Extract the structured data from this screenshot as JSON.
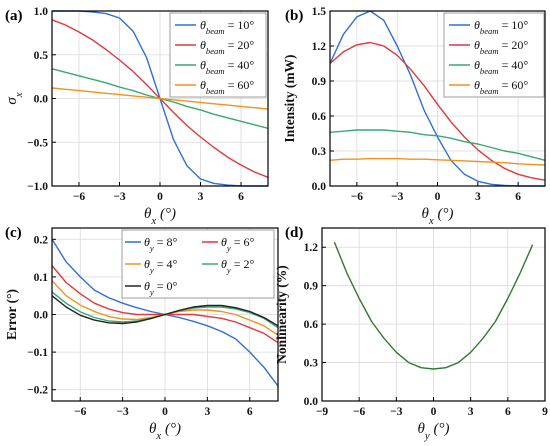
{
  "chart_data": [
    {
      "type": "line",
      "panel": "(a)",
      "ylabel": "σx",
      "xlabel": "θx (°)",
      "xlim": [
        -8,
        8
      ],
      "ylim": [
        -1.0,
        1.0
      ],
      "xticks": [
        -6,
        -3,
        0,
        3,
        6
      ],
      "yticks": [
        -1.0,
        -0.5,
        0.0,
        0.5,
        1.0
      ],
      "grid": true,
      "legend_position": "top-right",
      "x": [
        -8,
        -7,
        -6,
        -5,
        -4,
        -3,
        -2,
        -1,
        0,
        1,
        2,
        3,
        4,
        5,
        6,
        7,
        8
      ],
      "series": [
        {
          "name": "θbeam = 10°",
          "color": "#2f6fd6",
          "values": [
            1.0,
            1.0,
            1.0,
            0.99,
            0.97,
            0.92,
            0.77,
            0.47,
            0.0,
            -0.47,
            -0.77,
            -0.92,
            -0.97,
            -0.99,
            -1.0,
            -1.0,
            -1.0
          ]
        },
        {
          "name": "θbeam = 20°",
          "color": "#e0393e",
          "values": [
            0.9,
            0.84,
            0.76,
            0.67,
            0.56,
            0.44,
            0.31,
            0.16,
            0.0,
            -0.16,
            -0.31,
            -0.44,
            -0.56,
            -0.67,
            -0.76,
            -0.84,
            -0.9
          ]
        },
        {
          "name": "θbeam = 40°",
          "color": "#3aa870",
          "values": [
            0.34,
            0.3,
            0.26,
            0.22,
            0.18,
            0.13,
            0.09,
            0.04,
            0.0,
            -0.04,
            -0.09,
            -0.13,
            -0.18,
            -0.22,
            -0.26,
            -0.3,
            -0.34
          ]
        },
        {
          "name": "θbeam = 60°",
          "color": "#f0921e",
          "values": [
            0.12,
            0.105,
            0.09,
            0.075,
            0.06,
            0.045,
            0.03,
            0.015,
            0.0,
            -0.015,
            -0.03,
            -0.045,
            -0.06,
            -0.075,
            -0.09,
            -0.105,
            -0.12
          ]
        }
      ]
    },
    {
      "type": "line",
      "panel": "(b)",
      "ylabel": "Intensity (mW)",
      "xlabel": "θx (°)",
      "xlim": [
        -8,
        8
      ],
      "ylim": [
        0.0,
        1.5
      ],
      "xticks": [
        -6,
        -3,
        0,
        3,
        6
      ],
      "yticks": [
        0.0,
        0.3,
        0.6,
        0.9,
        1.2,
        1.5
      ],
      "grid": true,
      "legend_position": "top-right",
      "x": [
        -8,
        -7,
        -6,
        -5,
        -4,
        -3,
        -2,
        -1,
        0,
        1,
        2,
        3,
        4,
        5,
        6,
        7,
        8
      ],
      "series": [
        {
          "name": "θbeam = 10°",
          "color": "#2f6fd6",
          "values": [
            1.05,
            1.3,
            1.45,
            1.5,
            1.42,
            1.2,
            0.95,
            0.65,
            0.42,
            0.22,
            0.1,
            0.04,
            0.015,
            0.005,
            0.0,
            0.0,
            0.0
          ]
        },
        {
          "name": "θbeam = 20°",
          "color": "#e0393e",
          "values": [
            1.05,
            1.15,
            1.21,
            1.23,
            1.2,
            1.12,
            1.0,
            0.86,
            0.7,
            0.55,
            0.42,
            0.31,
            0.22,
            0.15,
            0.1,
            0.07,
            0.05
          ]
        },
        {
          "name": "θbeam = 40°",
          "color": "#3aa870",
          "values": [
            0.46,
            0.47,
            0.48,
            0.48,
            0.48,
            0.47,
            0.46,
            0.44,
            0.43,
            0.41,
            0.38,
            0.36,
            0.33,
            0.3,
            0.28,
            0.25,
            0.22
          ]
        },
        {
          "name": "θbeam = 60°",
          "color": "#f0921e",
          "values": [
            0.22,
            0.23,
            0.23,
            0.235,
            0.235,
            0.235,
            0.23,
            0.23,
            0.225,
            0.22,
            0.215,
            0.21,
            0.205,
            0.2,
            0.19,
            0.185,
            0.18
          ]
        }
      ]
    },
    {
      "type": "line",
      "panel": "(c)",
      "ylabel": "Error (°)",
      "xlabel": "θx (°)",
      "xlim": [
        -8,
        8
      ],
      "ylim": [
        -0.23,
        0.23
      ],
      "xticks": [
        -6,
        -3,
        0,
        3,
        6
      ],
      "yticks": [
        -0.2,
        -0.1,
        0.0,
        0.1,
        0.2
      ],
      "grid": true,
      "legend_position": "top",
      "x": [
        -8,
        -7,
        -6,
        -5,
        -4,
        -3,
        -2,
        -1,
        0,
        1,
        2,
        3,
        4,
        5,
        6,
        7,
        8
      ],
      "series": [
        {
          "name": "θy = 8°",
          "color": "#2f6fd6",
          "values": [
            0.2,
            0.14,
            0.1,
            0.065,
            0.045,
            0.03,
            0.018,
            0.008,
            0.0,
            -0.008,
            -0.018,
            -0.03,
            -0.045,
            -0.065,
            -0.1,
            -0.14,
            -0.19
          ]
        },
        {
          "name": "θy = 6°",
          "color": "#e0393e",
          "values": [
            0.13,
            0.085,
            0.055,
            0.03,
            0.015,
            0.005,
            0.0,
            0.0,
            0.0,
            0.0,
            0.0,
            -0.005,
            -0.01,
            -0.02,
            -0.035,
            -0.05,
            -0.075
          ]
        },
        {
          "name": "θy = 4°",
          "color": "#f0921e",
          "values": [
            0.09,
            0.05,
            0.025,
            0.008,
            -0.005,
            -0.012,
            -0.013,
            -0.008,
            0.0,
            0.008,
            0.012,
            0.012,
            0.008,
            0.0,
            -0.015,
            -0.03,
            -0.055
          ]
        },
        {
          "name": "θy = 2°",
          "color": "#3aa870",
          "values": [
            0.06,
            0.03,
            0.007,
            -0.008,
            -0.017,
            -0.02,
            -0.017,
            -0.01,
            0.0,
            0.01,
            0.017,
            0.02,
            0.02,
            0.015,
            0.005,
            -0.01,
            -0.035
          ]
        },
        {
          "name": "θy = 0°",
          "color": "#222222",
          "values": [
            0.05,
            0.02,
            -0.002,
            -0.015,
            -0.022,
            -0.024,
            -0.02,
            -0.011,
            0.0,
            0.011,
            0.02,
            0.024,
            0.024,
            0.018,
            0.008,
            -0.008,
            -0.03
          ]
        }
      ]
    },
    {
      "type": "line",
      "panel": "(d)",
      "ylabel": "Nonlinearity (%)",
      "xlabel": "θy (°)",
      "xlim": [
        -9,
        9
      ],
      "ylim": [
        0.0,
        1.35
      ],
      "xticks": [
        -9,
        -6,
        -3,
        0,
        3,
        6,
        9
      ],
      "yticks": [
        0.0,
        0.3,
        0.6,
        0.9,
        1.2
      ],
      "grid": true,
      "x": [
        -8,
        -7,
        -6,
        -5,
        -4,
        -3,
        -2,
        -1,
        0,
        1,
        2,
        3,
        4,
        5,
        6,
        7,
        8
      ],
      "series": [
        {
          "color": "#2f7a2f",
          "values": [
            1.24,
            1.0,
            0.8,
            0.62,
            0.49,
            0.38,
            0.3,
            0.26,
            0.25,
            0.26,
            0.3,
            0.38,
            0.49,
            0.62,
            0.8,
            1.0,
            1.22
          ]
        }
      ]
    }
  ]
}
